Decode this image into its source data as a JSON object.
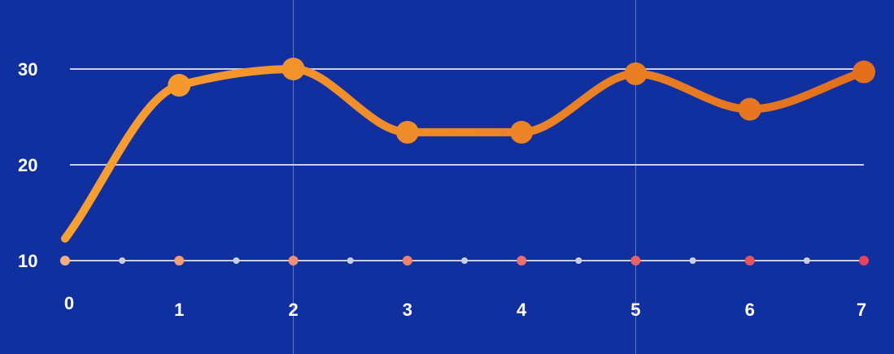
{
  "chart_data": {
    "type": "line",
    "title": "",
    "xlabel": "",
    "ylabel": "",
    "x": [
      0,
      1,
      2,
      3,
      4,
      5,
      6,
      7
    ],
    "series": [
      {
        "values": [
          12.3,
          28.3,
          30,
          23.4,
          23.4,
          29.5,
          25.8,
          29.7
        ]
      }
    ],
    "xlim": [
      0,
      7
    ],
    "ylim": [
      10,
      30
    ],
    "x_ticks": [
      "0",
      "1",
      "2",
      "3",
      "4",
      "5",
      "6",
      "7"
    ],
    "y_ticks": [
      "10",
      "20",
      "30"
    ],
    "grid": {
      "horizontal": true,
      "vertical_at": [
        2,
        5
      ]
    },
    "colors": {
      "background": "#1130a0",
      "grid": "#c9cde8",
      "line_start": "#f8a032",
      "line_end": "#e36f1c",
      "baseline_dot": "#c9cde8",
      "marker_start": "#f7ad7e",
      "marker_end": "#e8435e"
    }
  }
}
